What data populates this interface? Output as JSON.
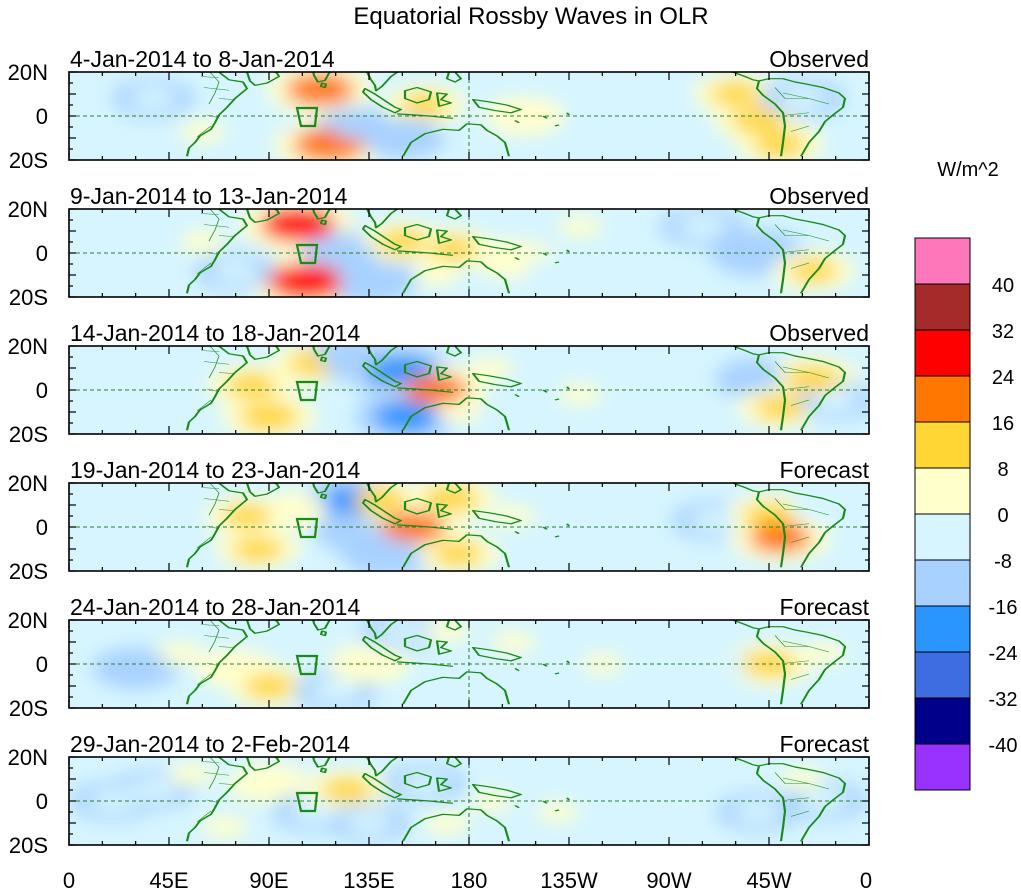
{
  "title": "Equatorial Rossby Waves in OLR",
  "colorbar": {
    "unit_label": "W/m^2",
    "colors": [
      "#ff77bb",
      "#a52a2a",
      "#ff0000",
      "#ff7700",
      "#ffd633",
      "#ffffcc",
      "#d6f5ff",
      "#a8d1ff",
      "#2b95ff",
      "#3d6de0",
      "#00008b",
      "#9932ff"
    ],
    "tick_labels": [
      "40",
      "32",
      "24",
      "16",
      "8",
      "0",
      "-8",
      "-16",
      "-24",
      "-32",
      "-40"
    ]
  },
  "lat_labels": [
    "20N",
    "0",
    "20S"
  ],
  "lon_labels": [
    "0",
    "45E",
    "90E",
    "135E",
    "180",
    "135W",
    "90W",
    "45W",
    "0"
  ],
  "panels": [
    {
      "date_range": "4-Jan-2014 to 8-Jan-2014",
      "status": "Observed"
    },
    {
      "date_range": "9-Jan-2014 to 13-Jan-2014",
      "status": "Observed"
    },
    {
      "date_range": "14-Jan-2014 to 18-Jan-2014",
      "status": "Observed"
    },
    {
      "date_range": "19-Jan-2014 to 23-Jan-2014",
      "status": "Forecast"
    },
    {
      "date_range": "24-Jan-2014 to 28-Jan-2014",
      "status": "Forecast"
    },
    {
      "date_range": "29-Jan-2014 to 2-Feb-2014",
      "status": "Forecast"
    }
  ],
  "anomalies": [
    [
      {
        "lon": 113,
        "lat": 12,
        "v": 20
      },
      {
        "lon": 117,
        "lat": -13,
        "v": 22
      },
      {
        "lon": 130,
        "lat": -5,
        "v": -9
      },
      {
        "lon": 160,
        "lat": 5,
        "v": 8
      },
      {
        "lon": 150,
        "lat": -10,
        "v": -9
      },
      {
        "lon": 205,
        "lat": 0,
        "v": 7
      },
      {
        "lon": 60,
        "lat": -7,
        "v": 6
      },
      {
        "lon": 38,
        "lat": 8,
        "v": -7
      },
      {
        "lon": 240,
        "lat": 12,
        "v": -6
      },
      {
        "lon": 300,
        "lat": 10,
        "v": 9
      },
      {
        "lon": 310,
        "lat": -2,
        "v": 11
      },
      {
        "lon": 320,
        "lat": -13,
        "v": 10
      },
      {
        "lon": 330,
        "lat": 8,
        "v": -8
      },
      {
        "lon": 95,
        "lat": -2,
        "v": -6
      }
    ],
    [
      {
        "lon": 103,
        "lat": 13,
        "v": 24
      },
      {
        "lon": 107,
        "lat": -13,
        "v": 26
      },
      {
        "lon": 125,
        "lat": 0,
        "v": -12
      },
      {
        "lon": 135,
        "lat": -12,
        "v": -16
      },
      {
        "lon": 150,
        "lat": 5,
        "v": 9
      },
      {
        "lon": 173,
        "lat": 2,
        "v": 8
      },
      {
        "lon": 165,
        "lat": -10,
        "v": 6
      },
      {
        "lon": 200,
        "lat": -3,
        "v": 7
      },
      {
        "lon": 215,
        "lat": -8,
        "v": -6
      },
      {
        "lon": 230,
        "lat": 12,
        "v": 5
      },
      {
        "lon": 285,
        "lat": 12,
        "v": -8
      },
      {
        "lon": 310,
        "lat": 0,
        "v": -14
      },
      {
        "lon": 335,
        "lat": -8,
        "v": 8
      },
      {
        "lon": 60,
        "lat": 5,
        "v": 6
      },
      {
        "lon": 75,
        "lat": -8,
        "v": -7
      }
    ],
    [
      {
        "lon": 82,
        "lat": 2,
        "v": 10
      },
      {
        "lon": 90,
        "lat": -12,
        "v": 14
      },
      {
        "lon": 110,
        "lat": 12,
        "v": 9
      },
      {
        "lon": 125,
        "lat": 14,
        "v": -10
      },
      {
        "lon": 150,
        "lat": 8,
        "v": -20
      },
      {
        "lon": 165,
        "lat": 0,
        "v": 18
      },
      {
        "lon": 152,
        "lat": -12,
        "v": -18
      },
      {
        "lon": 175,
        "lat": -10,
        "v": 6
      },
      {
        "lon": 190,
        "lat": 10,
        "v": 6
      },
      {
        "lon": 230,
        "lat": -2,
        "v": 5
      },
      {
        "lon": 310,
        "lat": 5,
        "v": -9
      },
      {
        "lon": 320,
        "lat": -8,
        "v": 9
      },
      {
        "lon": 335,
        "lat": 5,
        "v": 12
      },
      {
        "lon": 345,
        "lat": -5,
        "v": -7
      },
      {
        "lon": 45,
        "lat": -5,
        "v": -5
      }
    ],
    [
      {
        "lon": 80,
        "lat": 5,
        "v": 8
      },
      {
        "lon": 85,
        "lat": -10,
        "v": 9
      },
      {
        "lon": 105,
        "lat": 8,
        "v": 7
      },
      {
        "lon": 130,
        "lat": 12,
        "v": -18
      },
      {
        "lon": 130,
        "lat": -2,
        "v": -10
      },
      {
        "lon": 140,
        "lat": 12,
        "v": 10
      },
      {
        "lon": 155,
        "lat": 0,
        "v": 18
      },
      {
        "lon": 145,
        "lat": -12,
        "v": -16
      },
      {
        "lon": 172,
        "lat": 13,
        "v": 12
      },
      {
        "lon": 175,
        "lat": -12,
        "v": 9
      },
      {
        "lon": 200,
        "lat": 5,
        "v": 5
      },
      {
        "lon": 290,
        "lat": 3,
        "v": -7
      },
      {
        "lon": 315,
        "lat": 5,
        "v": 10
      },
      {
        "lon": 320,
        "lat": -5,
        "v": 16
      },
      {
        "lon": 335,
        "lat": 8,
        "v": -6
      },
      {
        "lon": 40,
        "lat": 2,
        "v": -6
      }
    ],
    [
      {
        "lon": 30,
        "lat": -2,
        "v": -9
      },
      {
        "lon": 50,
        "lat": 5,
        "v": 6
      },
      {
        "lon": 75,
        "lat": -2,
        "v": 7
      },
      {
        "lon": 90,
        "lat": -10,
        "v": 9
      },
      {
        "lon": 120,
        "lat": -12,
        "v": -8
      },
      {
        "lon": 135,
        "lat": 0,
        "v": 7
      },
      {
        "lon": 150,
        "lat": 15,
        "v": -7
      },
      {
        "lon": 170,
        "lat": 15,
        "v": 6
      },
      {
        "lon": 180,
        "lat": -8,
        "v": -6
      },
      {
        "lon": 200,
        "lat": 10,
        "v": 5
      },
      {
        "lon": 240,
        "lat": 0,
        "v": 4
      },
      {
        "lon": 305,
        "lat": 0,
        "v": -6
      },
      {
        "lon": 315,
        "lat": 0,
        "v": 11
      },
      {
        "lon": 300,
        "lat": -12,
        "v": -5
      },
      {
        "lon": 340,
        "lat": 5,
        "v": 5
      }
    ],
    [
      {
        "lon": 20,
        "lat": 0,
        "v": -8
      },
      {
        "lon": 38,
        "lat": 5,
        "v": -7
      },
      {
        "lon": 55,
        "lat": 12,
        "v": 6
      },
      {
        "lon": 70,
        "lat": -12,
        "v": 6
      },
      {
        "lon": 90,
        "lat": 8,
        "v": 7
      },
      {
        "lon": 110,
        "lat": -5,
        "v": -8
      },
      {
        "lon": 125,
        "lat": 5,
        "v": 9
      },
      {
        "lon": 135,
        "lat": -10,
        "v": -7
      },
      {
        "lon": 160,
        "lat": 8,
        "v": -7
      },
      {
        "lon": 170,
        "lat": -10,
        "v": 6
      },
      {
        "lon": 190,
        "lat": 0,
        "v": 4
      },
      {
        "lon": 220,
        "lat": -5,
        "v": 4
      },
      {
        "lon": 270,
        "lat": 5,
        "v": -5
      },
      {
        "lon": 310,
        "lat": -5,
        "v": -7
      },
      {
        "lon": 340,
        "lat": 0,
        "v": -8
      },
      {
        "lon": 330,
        "lat": 10,
        "v": 5
      }
    ]
  ]
}
